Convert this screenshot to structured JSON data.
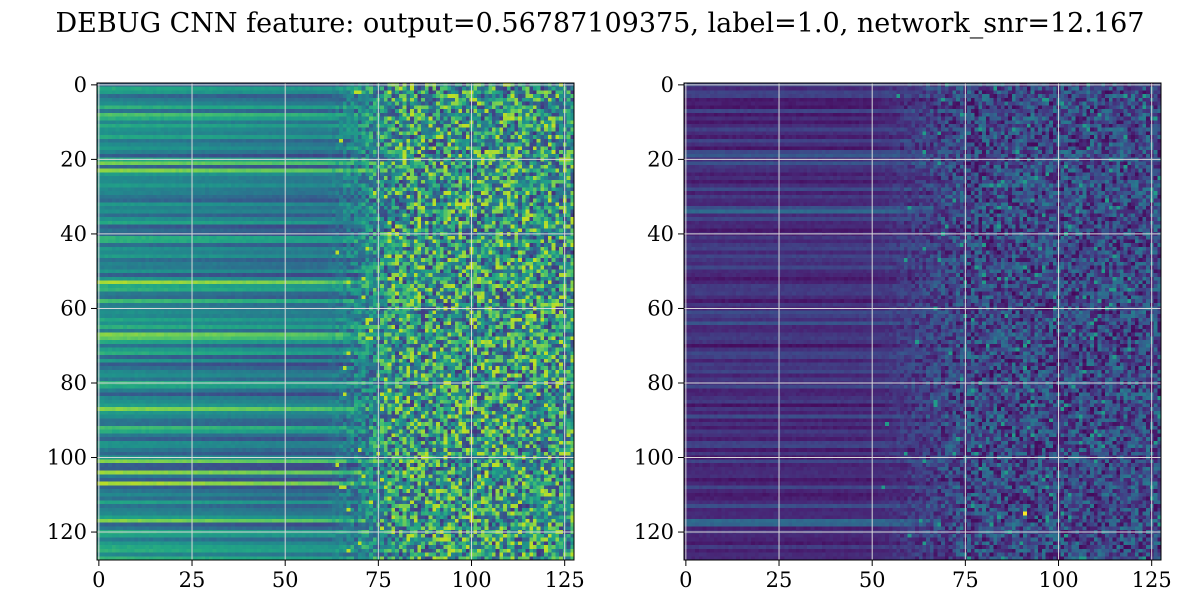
{
  "title": "DEBUG CNN feature: output=0.56787109375, label=1.0, network_snr=12.167",
  "chart_data": [
    {
      "type": "heatmap",
      "colormap": "viridis",
      "rows": 128,
      "cols": 128,
      "xlim": [
        0,
        127
      ],
      "ylim": [
        127,
        0
      ],
      "x_ticks": [
        0,
        25,
        50,
        75,
        100,
        125
      ],
      "y_ticks": [
        0,
        20,
        40,
        60,
        80,
        100,
        120
      ],
      "grid": true,
      "value_range": [
        0,
        1
      ]
    },
    {
      "type": "heatmap",
      "colormap": "viridis",
      "rows": 128,
      "cols": 128,
      "xlim": [
        0,
        127
      ],
      "ylim": [
        127,
        0
      ],
      "x_ticks": [
        0,
        25,
        50,
        75,
        100,
        125
      ],
      "y_ticks": [
        0,
        20,
        40,
        60,
        80,
        100,
        120
      ],
      "grid": true,
      "value_range": [
        0,
        1
      ]
    }
  ]
}
